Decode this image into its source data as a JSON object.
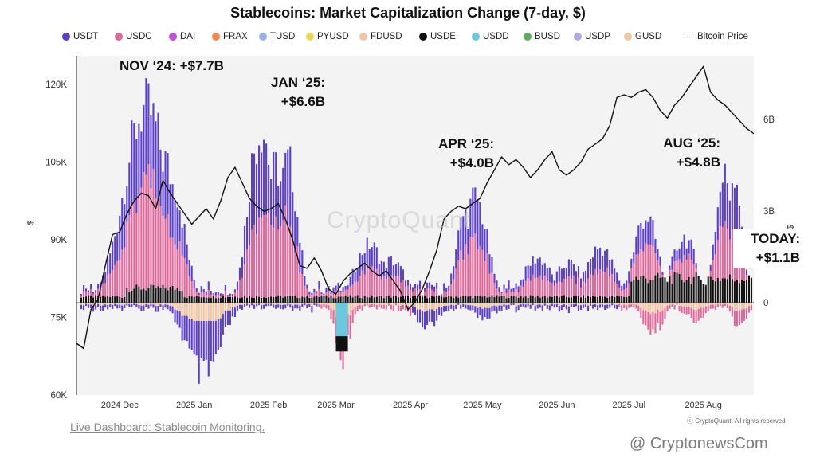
{
  "title": "Stablecoins: Market Capitalization Change (7-day, $)",
  "legend": [
    {
      "label": "USDT",
      "color": "#5b3fc8",
      "kind": "dot"
    },
    {
      "label": "USDC",
      "color": "#e0679c",
      "kind": "dot"
    },
    {
      "label": "DAI",
      "color": "#c24fd9",
      "kind": "dot"
    },
    {
      "label": "FRAX",
      "color": "#f4864a",
      "kind": "dot"
    },
    {
      "label": "TUSD",
      "color": "#9ab0e6",
      "kind": "dot"
    },
    {
      "label": "PYUSD",
      "color": "#f2d35a",
      "kind": "dot"
    },
    {
      "label": "FDUSD",
      "color": "#f1c4a2",
      "kind": "dot"
    },
    {
      "label": "USDE",
      "color": "#111111",
      "kind": "dot"
    },
    {
      "label": "USDD",
      "color": "#6cc8dc",
      "kind": "dot"
    },
    {
      "label": "BUSD",
      "color": "#5cae5c",
      "kind": "dot"
    },
    {
      "label": "USDP",
      "color": "#b3a7e6",
      "kind": "dot"
    },
    {
      "label": "GUSD",
      "color": "#f0c7a0",
      "kind": "dot"
    },
    {
      "label": "Bitcoin Price",
      "color": "#111111",
      "kind": "line"
    }
  ],
  "annotations": [
    {
      "line1": "NOV ‘24: +$7.7B",
      "line2": ""
    },
    {
      "line1": "JAN ‘25:",
      "line2": "+$6.6B"
    },
    {
      "line1": "APR ‘25:",
      "line2": "+$4.0B"
    },
    {
      "line1": "AUG ‘25:",
      "line2": "+$4.8B"
    },
    {
      "line1": "TODAY:",
      "line2": "+$1.1B"
    }
  ],
  "watermark": "CryptoQuant",
  "footer_link": "Live Dashboard: Stablecoin Monitoring.",
  "rights": "ⓒ CryptoQuant. All rights reserved",
  "brand": "@ CryptonewsCom",
  "chart_data": {
    "type": "bar",
    "title": "Stablecoins: Market Capitalization Change (7-day, $)",
    "left_axis": {
      "label": "$",
      "ticks": [
        "60K",
        "75K",
        "90K",
        "105K",
        "120K"
      ],
      "range": [
        60000,
        125000
      ],
      "series": "Bitcoin Price"
    },
    "right_axis": {
      "label": "$",
      "ticks": [
        "0",
        "3B",
        "6B"
      ],
      "range": [
        -3.7,
        7.8
      ],
      "unit": "B",
      "series": "Stablecoin 7-day market cap change"
    },
    "x_ticks": [
      "2024 Dec",
      "2025 Jan",
      "2025 Feb",
      "2025 Mar",
      "2025 Apr",
      "2025 May",
      "2025 Jun",
      "2025 Jul",
      "2025 Aug"
    ],
    "x_range_days": [
      0,
      282
    ],
    "x_tick_days": [
      18,
      49,
      80,
      108,
      139,
      169,
      200,
      230,
      261
    ],
    "peaks": [
      {
        "label": "NOV ‘24",
        "value": 7.7
      },
      {
        "label": "JAN ‘25",
        "value": 6.6
      },
      {
        "label": "APR ‘25",
        "value": 4.0
      },
      {
        "label": "AUG ‘25",
        "value": 4.8
      },
      {
        "label": "TODAY",
        "value": 1.1
      }
    ],
    "bitcoin_price": {
      "day": [
        0,
        3,
        6,
        9,
        12,
        15,
        18,
        21,
        24,
        27,
        30,
        33,
        36,
        39,
        42,
        45,
        48,
        51,
        54,
        57,
        60,
        63,
        66,
        69,
        72,
        75,
        78,
        81,
        84,
        87,
        90,
        93,
        96,
        99,
        102,
        105,
        108,
        111,
        114,
        117,
        120,
        123,
        126,
        129,
        132,
        135,
        138,
        141,
        144,
        147,
        150,
        153,
        156,
        159,
        162,
        165,
        168,
        171,
        174,
        177,
        180,
        183,
        186,
        189,
        192,
        195,
        198,
        201,
        204,
        207,
        210,
        213,
        216,
        219,
        222,
        225,
        228,
        231,
        234,
        237,
        240,
        243,
        246,
        249,
        252,
        255,
        258,
        261,
        264,
        267,
        270,
        273,
        276,
        279,
        282
      ],
      "value": [
        70000,
        69000,
        76500,
        78500,
        85000,
        91000,
        91500,
        95000,
        97500,
        99000,
        98500,
        96000,
        101500,
        99000,
        97000,
        95000,
        93000,
        94500,
        96000,
        94000,
        97500,
        102000,
        104000,
        101000,
        98000,
        96500,
        95500,
        96000,
        97000,
        94000,
        90000,
        85000,
        84500,
        86500,
        84000,
        80500,
        79500,
        82000,
        83500,
        84500,
        85500,
        84000,
        83000,
        84000,
        82000,
        80000,
        76500,
        78000,
        80500,
        84000,
        88000,
        94000,
        95500,
        96500,
        96000,
        97000,
        98000,
        101000,
        103500,
        106000,
        104500,
        105500,
        104000,
        102000,
        103500,
        105500,
        107000,
        103500,
        102500,
        103500,
        105000,
        107500,
        108500,
        109500,
        112000,
        117500,
        118000,
        117500,
        118500,
        119000,
        117500,
        115000,
        113500,
        116000,
        117500,
        119500,
        121500,
        123500,
        118500,
        117000,
        116000,
        114500,
        113000,
        111500,
        110500
      ]
    },
    "series": [
      {
        "name": "USDT"
      },
      {
        "name": "USDC"
      },
      {
        "name": "USDE"
      },
      {
        "name": "FDUSD"
      },
      {
        "name": "USDD"
      }
    ]
  }
}
